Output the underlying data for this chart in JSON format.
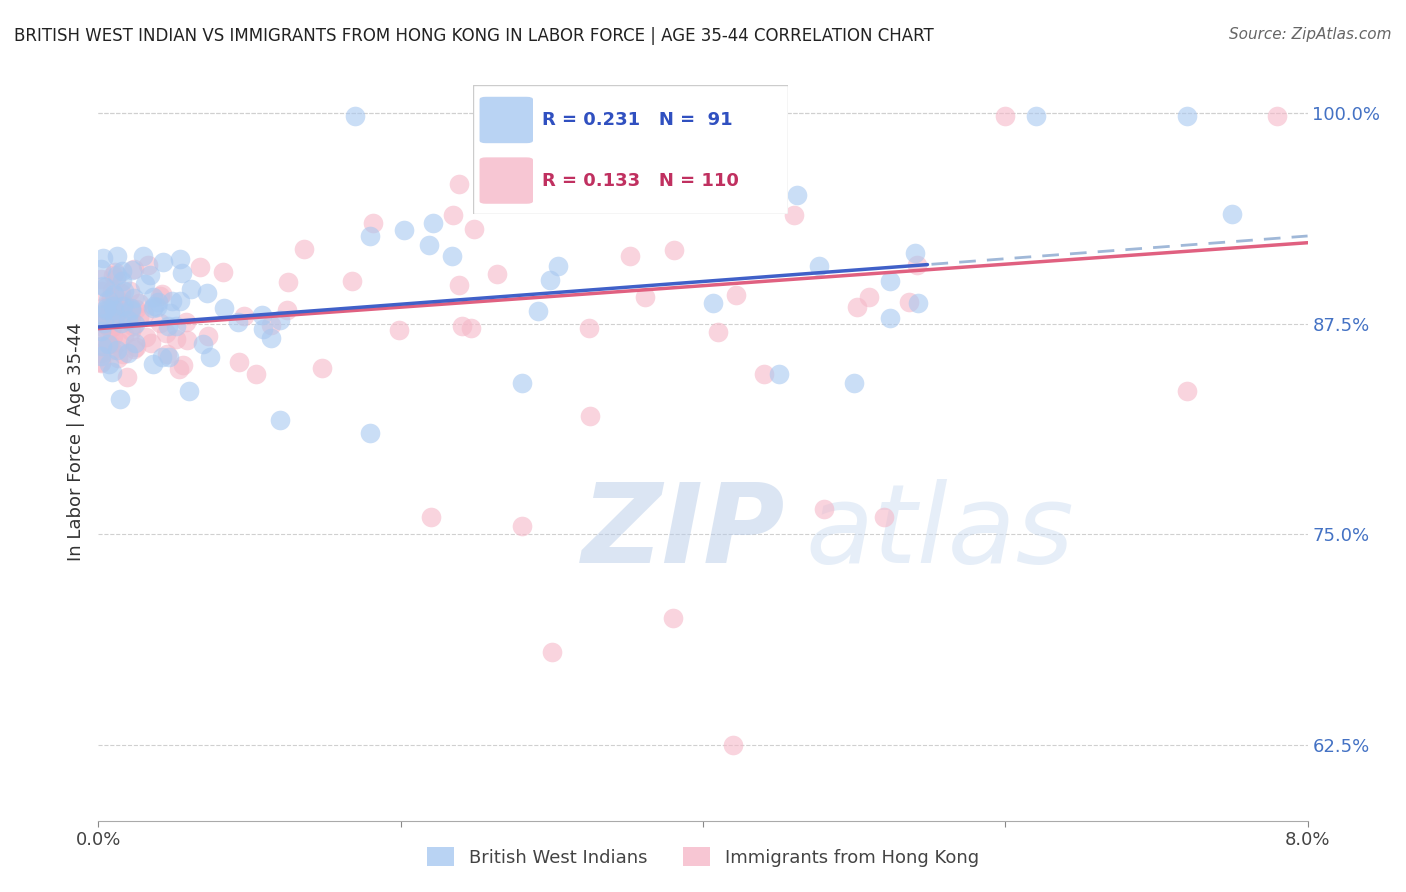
{
  "title": "BRITISH WEST INDIAN VS IMMIGRANTS FROM HONG KONG IN LABOR FORCE | AGE 35-44 CORRELATION CHART",
  "source": "Source: ZipAtlas.com",
  "ylabel": "In Labor Force | Age 35-44",
  "ytick_labels": [
    "62.5%",
    "75.0%",
    "87.5%",
    "100.0%"
  ],
  "ytick_values": [
    0.625,
    0.75,
    0.875,
    1.0
  ],
  "legend_blue_r": "0.231",
  "legend_blue_n": " 91",
  "legend_pink_r": "0.133",
  "legend_pink_n": "110",
  "legend_blue_label": "British West Indians",
  "legend_pink_label": "Immigrants from Hong Kong",
  "blue_color": "#a8c8f0",
  "pink_color": "#f5b8c8",
  "blue_line_color": "#4060c8",
  "pink_line_color": "#e06080",
  "blue_dash_color": "#a0b8d8",
  "watermark": "ZIPatlas",
  "watermark_color_zip": "#c0d4f0",
  "watermark_color_atlas": "#d8e8f8",
  "background_color": "#ffffff",
  "xlim": [
    0.0,
    0.08
  ],
  "ylim": [
    0.58,
    1.03
  ],
  "grid_color": "#d0d0d0",
  "title_color": "#222222",
  "source_color": "#666666",
  "tick_color": "#4472c4",
  "bottom_label_color": "#444444"
}
